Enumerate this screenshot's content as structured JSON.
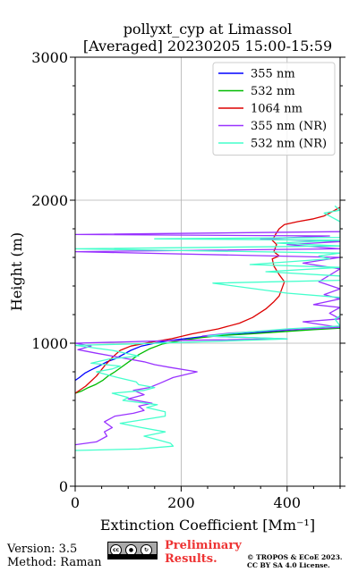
{
  "chart_data": {
    "type": "line",
    "title": "pollyxt_cyp at Limassol",
    "subtitle": "[Averaged] 20230205 15:00-15:59",
    "xlabel": "Extinction Coefficient [Mm⁻¹]",
    "ylabel": "Height (m)",
    "xlim": [
      0,
      500
    ],
    "ylim": [
      0,
      3000
    ],
    "xticks": [
      0,
      200,
      400
    ],
    "yticks": [
      0,
      1000,
      2000,
      3000
    ],
    "grid": true,
    "legend_position": "top-right",
    "series": [
      {
        "name": "355 nm",
        "color": "#0000ff",
        "points": [
          [
            0,
            740
          ],
          [
            8,
            760
          ],
          [
            18,
            790
          ],
          [
            28,
            810
          ],
          [
            45,
            840
          ],
          [
            60,
            870
          ],
          [
            75,
            890
          ],
          [
            90,
            920
          ],
          [
            105,
            950
          ],
          [
            125,
            980
          ],
          [
            150,
            1000
          ],
          [
            180,
            1020
          ],
          [
            215,
            1035
          ],
          [
            250,
            1050
          ],
          [
            290,
            1060
          ],
          [
            330,
            1070
          ],
          [
            380,
            1085
          ],
          [
            440,
            1100
          ],
          [
            500,
            1110
          ]
        ]
      },
      {
        "name": "532 nm",
        "color": "#00bb00",
        "points": [
          [
            0,
            650
          ],
          [
            12,
            665
          ],
          [
            25,
            690
          ],
          [
            38,
            710
          ],
          [
            52,
            740
          ],
          [
            62,
            770
          ],
          [
            75,
            800
          ],
          [
            90,
            840
          ],
          [
            105,
            880
          ],
          [
            120,
            920
          ],
          [
            140,
            960
          ],
          [
            165,
            995
          ],
          [
            200,
            1020
          ],
          [
            240,
            1040
          ],
          [
            280,
            1055
          ],
          [
            330,
            1065
          ],
          [
            390,
            1080
          ],
          [
            450,
            1095
          ],
          [
            500,
            1105
          ]
        ]
      },
      {
        "name": "1064 nm",
        "color": "#dd0000",
        "points": [
          [
            0,
            650
          ],
          [
            20,
            700
          ],
          [
            40,
            770
          ],
          [
            55,
            840
          ],
          [
            70,
            900
          ],
          [
            85,
            950
          ],
          [
            105,
            980
          ],
          [
            140,
            1005
          ],
          [
            180,
            1030
          ],
          [
            220,
            1065
          ],
          [
            270,
            1100
          ],
          [
            310,
            1140
          ],
          [
            335,
            1180
          ],
          [
            360,
            1240
          ],
          [
            375,
            1290
          ],
          [
            385,
            1330
          ],
          [
            390,
            1380
          ],
          [
            395,
            1430
          ],
          [
            385,
            1480
          ],
          [
            375,
            1540
          ],
          [
            372,
            1590
          ],
          [
            385,
            1610
          ],
          [
            375,
            1640
          ],
          [
            380,
            1690
          ],
          [
            372,
            1720
          ],
          [
            378,
            1760
          ],
          [
            385,
            1800
          ],
          [
            395,
            1830
          ],
          [
            420,
            1850
          ],
          [
            450,
            1870
          ],
          [
            470,
            1890
          ],
          [
            480,
            1910
          ],
          [
            490,
            1930
          ],
          [
            500,
            1950
          ]
        ]
      },
      {
        "name": "355 nm (NR)",
        "color": "#9933ff",
        "points": [
          [
            0,
            290
          ],
          [
            40,
            310
          ],
          [
            60,
            350
          ],
          [
            55,
            380
          ],
          [
            70,
            410
          ],
          [
            55,
            450
          ],
          [
            75,
            490
          ],
          [
            110,
            510
          ],
          [
            130,
            530
          ],
          [
            120,
            560
          ],
          [
            145,
            580
          ],
          [
            100,
            610
          ],
          [
            130,
            640
          ],
          [
            110,
            670
          ],
          [
            140,
            690
          ],
          [
            160,
            720
          ],
          [
            185,
            760
          ],
          [
            230,
            800
          ],
          [
            180,
            830
          ],
          [
            150,
            850
          ],
          [
            130,
            870
          ],
          [
            100,
            890
          ],
          [
            70,
            910
          ],
          [
            40,
            930
          ],
          [
            5,
            955
          ],
          [
            30,
            980
          ],
          [
            0,
            1000
          ],
          [
            200,
            1020
          ],
          [
            400,
            1030
          ],
          [
            240,
            1050
          ],
          [
            290,
            1070
          ],
          [
            380,
            1090
          ],
          [
            500,
            1110
          ],
          [
            430,
            1150
          ],
          [
            500,
            1170
          ],
          [
            480,
            1210
          ],
          [
            500,
            1250
          ],
          [
            450,
            1270
          ],
          [
            500,
            1310
          ],
          [
            470,
            1340
          ],
          [
            500,
            1380
          ],
          [
            460,
            1430
          ],
          [
            500,
            1520
          ],
          [
            430,
            1560
          ],
          [
            500,
            1600
          ],
          [
            0,
            1640
          ],
          [
            500,
            1660
          ],
          [
            400,
            1690
          ],
          [
            500,
            1710
          ],
          [
            350,
            1730
          ],
          [
            480,
            1750
          ],
          [
            0,
            1760
          ],
          [
            500,
            1780
          ]
        ]
      },
      {
        "name": "532 nm (NR)",
        "color": "#44ffcc",
        "points": [
          [
            0,
            250
          ],
          [
            120,
            260
          ],
          [
            185,
            280
          ],
          [
            180,
            300
          ],
          [
            160,
            320
          ],
          [
            130,
            350
          ],
          [
            170,
            380
          ],
          [
            125,
            410
          ],
          [
            85,
            440
          ],
          [
            120,
            460
          ],
          [
            170,
            490
          ],
          [
            170,
            520
          ],
          [
            135,
            550
          ],
          [
            155,
            570
          ],
          [
            90,
            600
          ],
          [
            100,
            620
          ],
          [
            70,
            650
          ],
          [
            130,
            670
          ],
          [
            150,
            690
          ],
          [
            120,
            710
          ],
          [
            115,
            730
          ],
          [
            80,
            760
          ],
          [
            60,
            780
          ],
          [
            40,
            800
          ],
          [
            70,
            820
          ],
          [
            85,
            840
          ],
          [
            30,
            860
          ],
          [
            65,
            890
          ],
          [
            120,
            910
          ],
          [
            70,
            950
          ],
          [
            0,
            985
          ],
          [
            110,
            995
          ],
          [
            240,
            1010
          ],
          [
            400,
            1030
          ],
          [
            250,
            1050
          ],
          [
            300,
            1070
          ],
          [
            400,
            1100
          ],
          [
            500,
            1120
          ],
          [
            490,
            1170
          ],
          [
            500,
            1190
          ],
          [
            500,
            1230
          ],
          [
            500,
            1320
          ],
          [
            400,
            1350
          ],
          [
            260,
            1420
          ],
          [
            500,
            1440
          ],
          [
            500,
            1470
          ],
          [
            360,
            1500
          ],
          [
            500,
            1530
          ],
          [
            330,
            1550
          ],
          [
            480,
            1590
          ],
          [
            460,
            1610
          ],
          [
            500,
            1630
          ],
          [
            0,
            1660
          ],
          [
            500,
            1680
          ],
          [
            380,
            1700
          ],
          [
            500,
            1720
          ],
          [
            150,
            1730
          ],
          [
            500,
            1740
          ],
          [
            500,
            1850
          ],
          [
            470,
            1910
          ],
          [
            500,
            1930
          ],
          [
            490,
            1960
          ]
        ]
      }
    ]
  },
  "footer": {
    "version": "Version: 3.5",
    "method": "Method: Raman",
    "preliminary_line1": "Preliminary",
    "preliminary_line2": "Results.",
    "license_line1": "© TROPOS & ECoE 2023.",
    "license_line2": "CC BY SA 4.0 License."
  },
  "cc_badge": {
    "text": "cc",
    "icon": "creative-commons-by-sa-badge"
  }
}
